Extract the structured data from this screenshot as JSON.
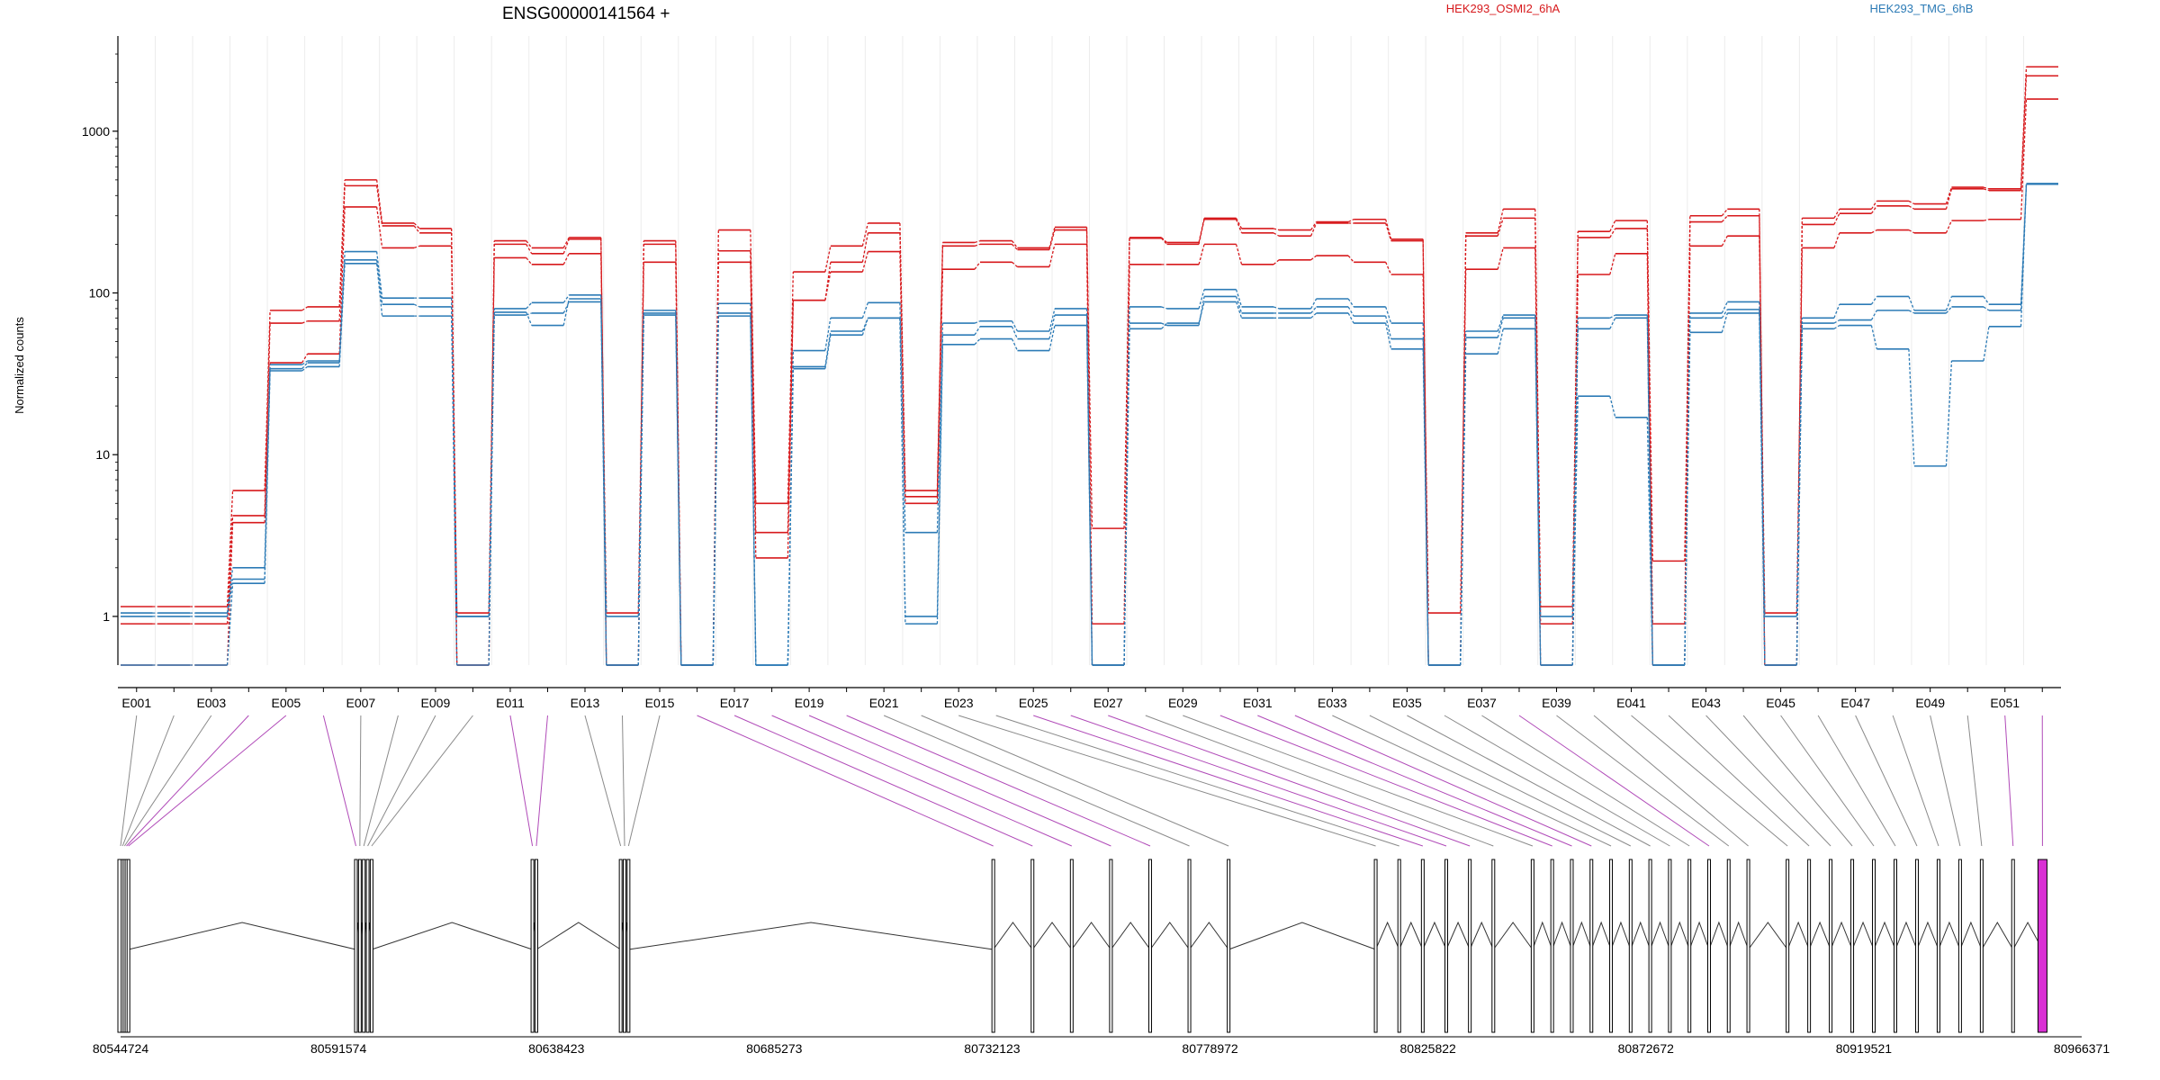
{
  "chart_data": {
    "type": "line",
    "title": "ENSG00000141564 +",
    "ylabel": "Normalized counts",
    "xlabel": "",
    "yscale": "log",
    "ylim": [
      0.5,
      3500
    ],
    "yticks": [
      1,
      10,
      100,
      1000
    ],
    "ytick_labels": [
      "1",
      "10",
      "100",
      "1000"
    ],
    "grid": "vertical exon separators",
    "legend": "top",
    "x": [
      "E001",
      "E002",
      "E003",
      "E004",
      "E005",
      "E006",
      "E007",
      "E008",
      "E009",
      "E010",
      "E011",
      "E012",
      "E013",
      "E014",
      "E015",
      "E016",
      "E017",
      "E018",
      "E019",
      "E020",
      "E021",
      "E022",
      "E023",
      "E024",
      "E025",
      "E026",
      "E027",
      "E028",
      "E029",
      "E030",
      "E031",
      "E032",
      "E033",
      "E034",
      "E035",
      "E036",
      "E037",
      "E038",
      "E039",
      "E040",
      "E041",
      "E042",
      "E043",
      "E044",
      "E045",
      "E046",
      "E047",
      "E048",
      "E049",
      "E050",
      "E051",
      "E052"
    ],
    "xtick_labels": [
      "E001",
      "E003",
      "E005",
      "E007",
      "E009",
      "E011",
      "E013",
      "E015",
      "E017",
      "E019",
      "E021",
      "E023",
      "E025",
      "E027",
      "E029",
      "E031",
      "E033",
      "E035",
      "E037",
      "E039",
      "E041",
      "E043",
      "E045",
      "E047",
      "E049",
      "E051"
    ],
    "groups": [
      {
        "name": "HEK293_OSMI2_6hA",
        "color": "#d7191c"
      },
      {
        "name": "HEK293_TMG_6hB",
        "color": "#2c7bb6"
      }
    ],
    "series": [
      {
        "group": "HEK293_OSMI2_6hA",
        "values": [
          1.15,
          1.15,
          1.15,
          6,
          78,
          82,
          500,
          270,
          250,
          0.5,
          210,
          190,
          220,
          0.5,
          210,
          0.5,
          245,
          5,
          135,
          195,
          270,
          6,
          205,
          210,
          190,
          255,
          3.5,
          220,
          205,
          290,
          250,
          245,
          275,
          285,
          215,
          0.5,
          235,
          330,
          1.15,
          240,
          280,
          2.2,
          300,
          330,
          0.5,
          290,
          330,
          370,
          355,
          450,
          440,
          2500
        ]
      },
      {
        "group": "HEK293_OSMI2_6hA",
        "values": [
          0.9,
          0.9,
          0.9,
          4.2,
          65,
          67,
          460,
          260,
          235,
          0.5,
          200,
          175,
          215,
          0.5,
          200,
          0.5,
          182,
          3.3,
          90,
          155,
          235,
          5.5,
          195,
          200,
          185,
          245,
          0.9,
          218,
          200,
          285,
          235,
          225,
          270,
          270,
          210,
          0.5,
          225,
          290,
          0.9,
          220,
          250,
          0.9,
          275,
          300,
          0.5,
          265,
          310,
          345,
          330,
          440,
          430,
          2200
        ]
      },
      {
        "group": "HEK293_OSMI2_6hA",
        "values": [
          0.5,
          0.5,
          0.5,
          3.8,
          37,
          42,
          340,
          190,
          195,
          1.05,
          165,
          150,
          175,
          1.05,
          155,
          0.5,
          155,
          2.3,
          90,
          135,
          180,
          5.0,
          140,
          155,
          145,
          200,
          0.5,
          150,
          150,
          200,
          150,
          160,
          170,
          155,
          130,
          1.05,
          140,
          190,
          0.5,
          130,
          175,
          0.5,
          195,
          225,
          1.05,
          190,
          235,
          245,
          235,
          280,
          285,
          1580
        ]
      },
      {
        "group": "HEK293_TMG_6hB",
        "values": [
          1.05,
          1.05,
          1.05,
          2.0,
          36,
          38,
          180,
          93,
          93,
          1.0,
          80,
          87,
          97,
          1.0,
          78,
          0.5,
          86,
          0.5,
          44,
          70,
          87,
          3.3,
          65,
          67,
          58,
          80,
          0.5,
          82,
          80,
          105,
          82,
          80,
          92,
          82,
          65,
          0.5,
          58,
          73,
          1.0,
          70,
          73,
          0.5,
          75,
          88,
          1.0,
          70,
          85,
          95,
          78,
          95,
          85,
          470
        ]
      },
      {
        "group": "HEK293_TMG_6hB",
        "values": [
          1.0,
          1.0,
          1.0,
          1.7,
          34,
          37,
          160,
          85,
          82,
          1.0,
          76,
          63,
          92,
          0.5,
          75,
          0.5,
          75,
          0.5,
          35,
          58,
          70,
          1.0,
          55,
          62,
          52,
          73,
          0.5,
          65,
          63,
          95,
          75,
          75,
          82,
          72,
          52,
          0.5,
          53,
          70,
          0.5,
          60,
          70,
          0.5,
          70,
          79,
          0.5,
          65,
          68,
          78,
          75,
          82,
          78,
          470
        ]
      },
      {
        "group": "HEK293_TMG_6hB",
        "values": [
          0.5,
          0.5,
          0.5,
          1.6,
          33,
          35,
          152,
          72,
          72,
          0.5,
          73,
          75,
          88,
          0.5,
          73,
          0.5,
          72,
          0.5,
          34,
          55,
          70,
          0.9,
          48,
          52,
          44,
          63,
          0.5,
          60,
          65,
          88,
          70,
          70,
          75,
          65,
          45,
          0.5,
          42,
          60,
          0.5,
          23,
          17,
          0.5,
          57,
          75,
          0.5,
          60,
          63,
          45,
          8.5,
          38,
          62,
          475
        ]
      }
    ],
    "genome_axis": {
      "tick_labels": [
        "80544724",
        "80591574",
        "80638423",
        "80685273",
        "80732123",
        "80778972",
        "80825822",
        "80872672",
        "80919521",
        "80966371"
      ],
      "range": [
        80544724,
        80966371
      ]
    }
  }
}
